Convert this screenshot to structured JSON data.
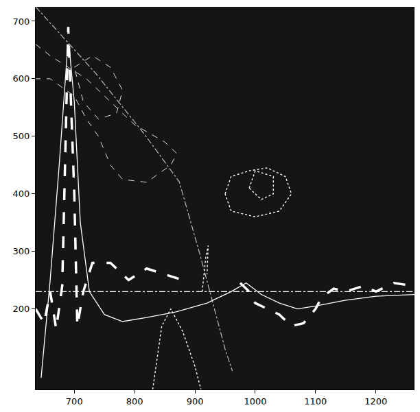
{
  "chart_data": {
    "type": "line",
    "xlim": [
      636,
      1264
    ],
    "ylim": [
      60,
      725
    ],
    "xticks": [
      700,
      800,
      900,
      1000,
      1100,
      1200
    ],
    "yticks": [
      200,
      300,
      400,
      500,
      600,
      700
    ],
    "grid": false,
    "series": [
      {
        "color": "#bbbbbb",
        "line_style": "dashdot",
        "x": [
          636,
          735,
          816,
          874,
          909,
          933,
          950,
          962
        ],
        "values": [
          725,
          610,
          504,
          421,
          292,
          198,
          130,
          92
        ]
      },
      {
        "color": "#ffffff",
        "line_style": "dashdot",
        "x": [
          636,
          1264
        ],
        "values": [
          230,
          230
        ]
      },
      {
        "color": "#ffffff",
        "line_style": "solid",
        "x": [
          645,
          660,
          675,
          688,
          692,
          700,
          710,
          725,
          750,
          780,
          820,
          870,
          920,
          960,
          985,
          1010,
          1040,
          1070,
          1100,
          1150,
          1200,
          1264
        ],
        "values": [
          80,
          250,
          450,
          640,
          650,
          560,
          350,
          230,
          190,
          178,
          185,
          195,
          210,
          230,
          245,
          225,
          210,
          200,
          205,
          215,
          222,
          225
        ]
      },
      {
        "color": "#ffffff",
        "line_style": "longdash",
        "x": [
          636,
          650,
          660,
          670,
          680,
          690,
          700,
          705,
          715,
          730,
          760,
          790,
          820,
          850,
          880,
          930,
          975,
          990,
          1000,
          1020,
          1040,
          1060,
          1080,
          1100,
          1110,
          1130,
          1150,
          1180,
          1200,
          1230,
          1260
        ],
        "values": [
          200,
          175,
          230,
          165,
          240,
          690,
          400,
          170,
          230,
          280,
          280,
          250,
          270,
          260,
          250,
          null,
          245,
          230,
          210,
          200,
          190,
          170,
          175,
          200,
          220,
          235,
          230,
          240,
          230,
          245,
          240
        ]
      },
      {
        "color": "#dddddd",
        "line_style": "dash",
        "x": [
          636,
          660,
          690,
          720,
          760,
          800,
          850,
          870,
          860,
          820,
          780,
          760,
          740,
          720,
          700,
          660,
          636
        ],
        "values": [
          660,
          640,
          620,
          600,
          560,
          520,
          490,
          470,
          450,
          420,
          425,
          450,
          500,
          530,
          570,
          600,
          600
        ]
      },
      {
        "color": "#dddddd",
        "line_style": "dash",
        "x": [
          700,
          730,
          760,
          780,
          770,
          740,
          715,
          700
        ],
        "values": [
          620,
          640,
          620,
          580,
          540,
          530,
          560,
          620
        ]
      },
      {
        "color": "#ffffff",
        "line_style": "dot",
        "x": [
          950,
          960,
          990,
          1020,
          1050,
          1060,
          1040,
          1000,
          960,
          950
        ],
        "values": [
          400,
          430,
          440,
          445,
          430,
          400,
          370,
          360,
          370,
          400
        ]
      },
      {
        "color": "#ffffff",
        "line_style": "dot",
        "x": [
          990,
          1000,
          1030,
          1030,
          1010,
          990
        ],
        "values": [
          410,
          440,
          430,
          400,
          390,
          410
        ]
      },
      {
        "color": "#ffffff",
        "line_style": "dot",
        "x": [
          830,
          845,
          860,
          880,
          900,
          910
        ],
        "values": [
          60,
          170,
          200,
          160,
          100,
          60
        ]
      },
      {
        "color": "#ffffff",
        "line_style": "dot",
        "x": [
          912,
          918,
          922,
          920
        ],
        "values": [
          230,
          290,
          310,
          260
        ]
      }
    ]
  }
}
